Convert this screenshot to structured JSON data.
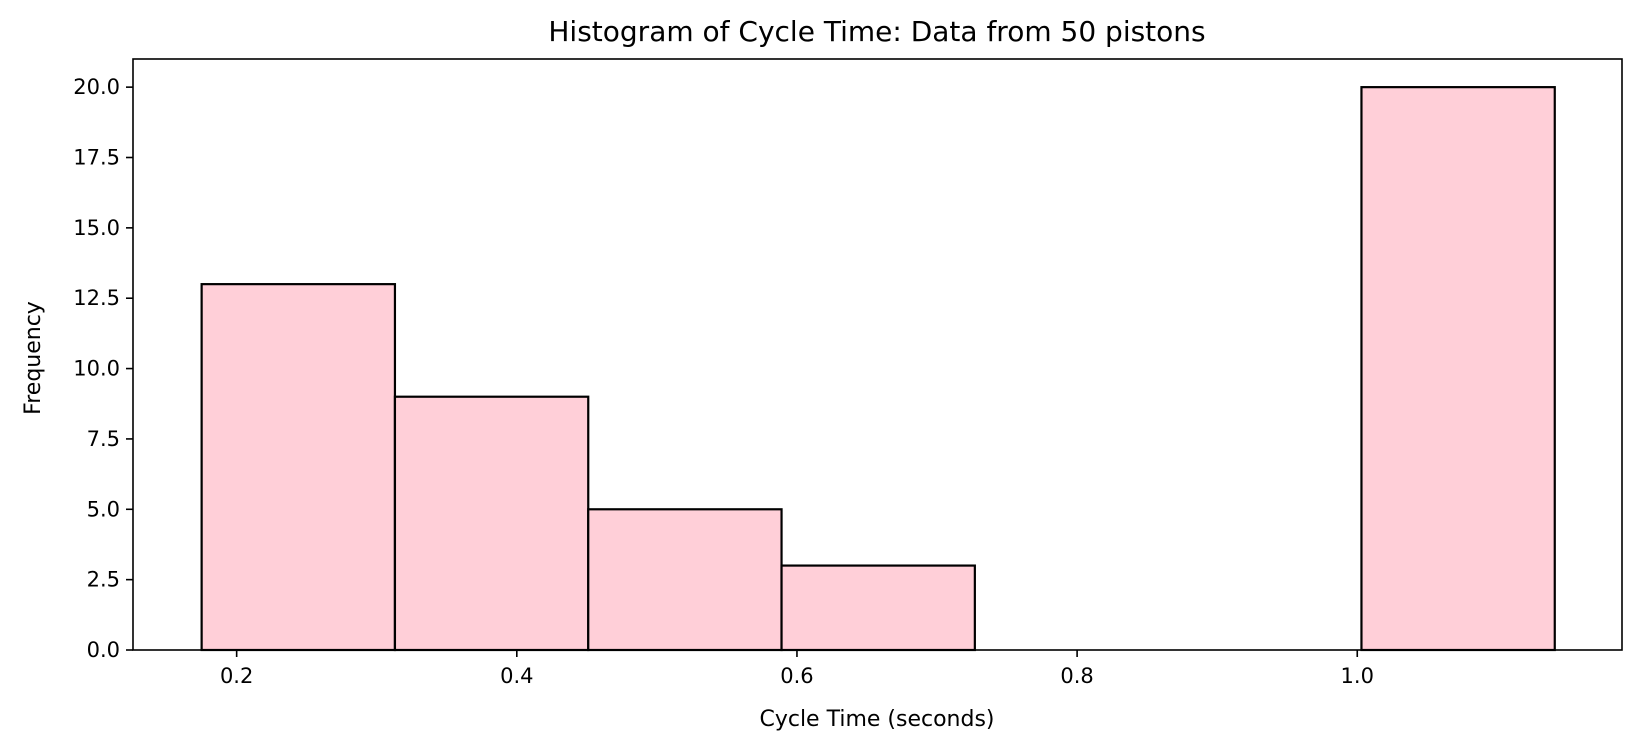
{
  "chart_data": {
    "type": "bar",
    "title": "Histogram of Cycle Time: Data from 50 pistons",
    "xlabel": "Cycle Time (seconds)",
    "ylabel": "Frequency",
    "bins": [
      {
        "start": 0.175,
        "end": 0.313,
        "count": 13
      },
      {
        "start": 0.313,
        "end": 0.451,
        "count": 9
      },
      {
        "start": 0.451,
        "end": 0.589,
        "count": 5
      },
      {
        "start": 0.589,
        "end": 0.727,
        "count": 3
      },
      {
        "start": 0.727,
        "end": 0.865,
        "count": 0
      },
      {
        "start": 0.865,
        "end": 1.003,
        "count": 0
      },
      {
        "start": 1.003,
        "end": 1.141,
        "count": 20
      }
    ],
    "xlim": [
      0.126,
      1.189
    ],
    "ylim": [
      0,
      21
    ],
    "xticks": [
      0.2,
      0.4,
      0.6,
      0.8,
      1.0
    ],
    "xtick_labels": [
      "0.2",
      "0.4",
      "0.6",
      "0.8",
      "1.0"
    ],
    "yticks": [
      0,
      2.5,
      5,
      7.5,
      10,
      12.5,
      15,
      17.5,
      20
    ],
    "ytick_labels": [
      "0.0",
      "2.5",
      "5.0",
      "7.5",
      "10.0",
      "12.5",
      "15.0",
      "17.5",
      "20.0"
    ],
    "grid": false,
    "bar_color": "#ffcfd8",
    "edge_color": "#000000"
  }
}
